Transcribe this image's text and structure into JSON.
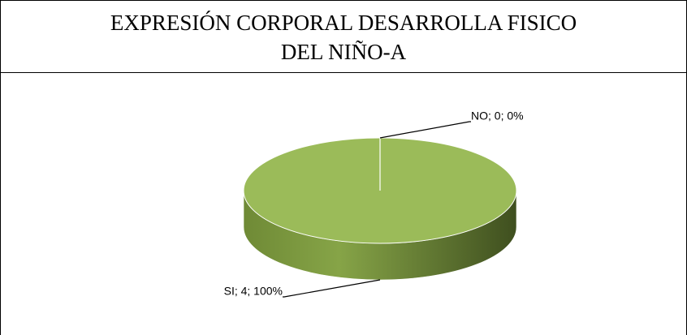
{
  "chart_data": {
    "type": "pie",
    "title": "EXPRESIÓN CORPORAL DESARROLLA FISICO DEL NIÑO-A",
    "categories": [
      "NO",
      "SI"
    ],
    "values": [
      0,
      4
    ],
    "value_labels": [
      "NO; 0; 0%",
      "SI; 4; 100%"
    ],
    "colors": [
      "#4f81bd",
      "#9bbb59"
    ],
    "three_d": true
  }
}
